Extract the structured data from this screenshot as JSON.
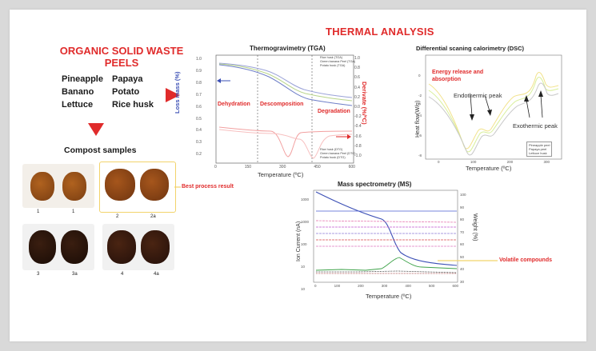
{
  "header": {
    "title": "THERMAL ANALYSIS"
  },
  "waste": {
    "title_line1": "ORGANIC SOLID WASTE",
    "title_line2": "PEELS",
    "items": [
      "Pineapple",
      "Papaya",
      "Banano",
      "Potato",
      "Lettuce",
      "Rice husk"
    ]
  },
  "compost": {
    "title": "Compost samples",
    "labels": [
      "1",
      "1",
      "2",
      "2a",
      "3",
      "3a",
      "4",
      "4a"
    ],
    "best_label": "Best process result"
  },
  "tga": {
    "title": "Thermogravimetry (TGA)",
    "ylabel": "Loss mass (%)",
    "y2label": "Derivate (%/ºC)",
    "xlabel": "Temperature (ºC)",
    "regions": [
      "Dehydration",
      "Descomposition",
      "Degradation"
    ],
    "legend_top": [
      "Rice husk (TGA)",
      "Green banana Peel (TGA)",
      "Potato husk (TGA)"
    ],
    "legend_bottom": [
      "Rice husk (DTG)",
      "Green banana Peel (DTG)",
      "Potato husk (DTG)"
    ],
    "xticks": [
      "0",
      "150",
      "300",
      "450",
      "600"
    ],
    "yticks": [
      "1.0",
      "0.9",
      "0.8",
      "0.7",
      "0.6",
      "0.5",
      "0.4",
      "0.3",
      "0.2"
    ],
    "y2ticks": [
      "1.0",
      "0.8",
      "0.6",
      "0.4",
      "0.2",
      "0.0",
      "-0.2",
      "-0.4",
      "-0.6",
      "-0.8",
      "-1.0"
    ]
  },
  "dsc": {
    "title": "Differential scaning calorimetry (DSC)",
    "ylabel": "Heat flow(W/g)",
    "xlabel": "Temperature (ºC)",
    "ann_energy": "Energy release and absorption",
    "ann_endo": "Endothermic peak",
    "ann_exo": "Exothermic peak",
    "legend": [
      "Pineapple peel",
      "Papaya peel",
      "Lettuce husk"
    ],
    "xticks": [
      "0",
      "100",
      "200",
      "300"
    ],
    "yticks": [
      "0",
      "-2",
      "-4",
      "-6",
      "-8"
    ]
  },
  "ms": {
    "title": "Mass spectrometry (MS)",
    "ylabel": "Ion Current (nA)",
    "y2label": "Weight (%)",
    "xlabel": "Temperature (ºC)",
    "annotation": "Volatile compounds",
    "xticks": [
      "0",
      "100",
      "200",
      "300",
      "400",
      "500",
      "600"
    ],
    "yticks": [
      "1000",
      "1000",
      "100",
      "10",
      "10"
    ],
    "y2ticks": [
      "100",
      "90",
      "80",
      "70",
      "60",
      "50",
      "40",
      "30"
    ]
  },
  "colors": {
    "accent": "#e02b2b",
    "highlight_box": "#f2d36b",
    "arrow": "#e02b2b"
  }
}
